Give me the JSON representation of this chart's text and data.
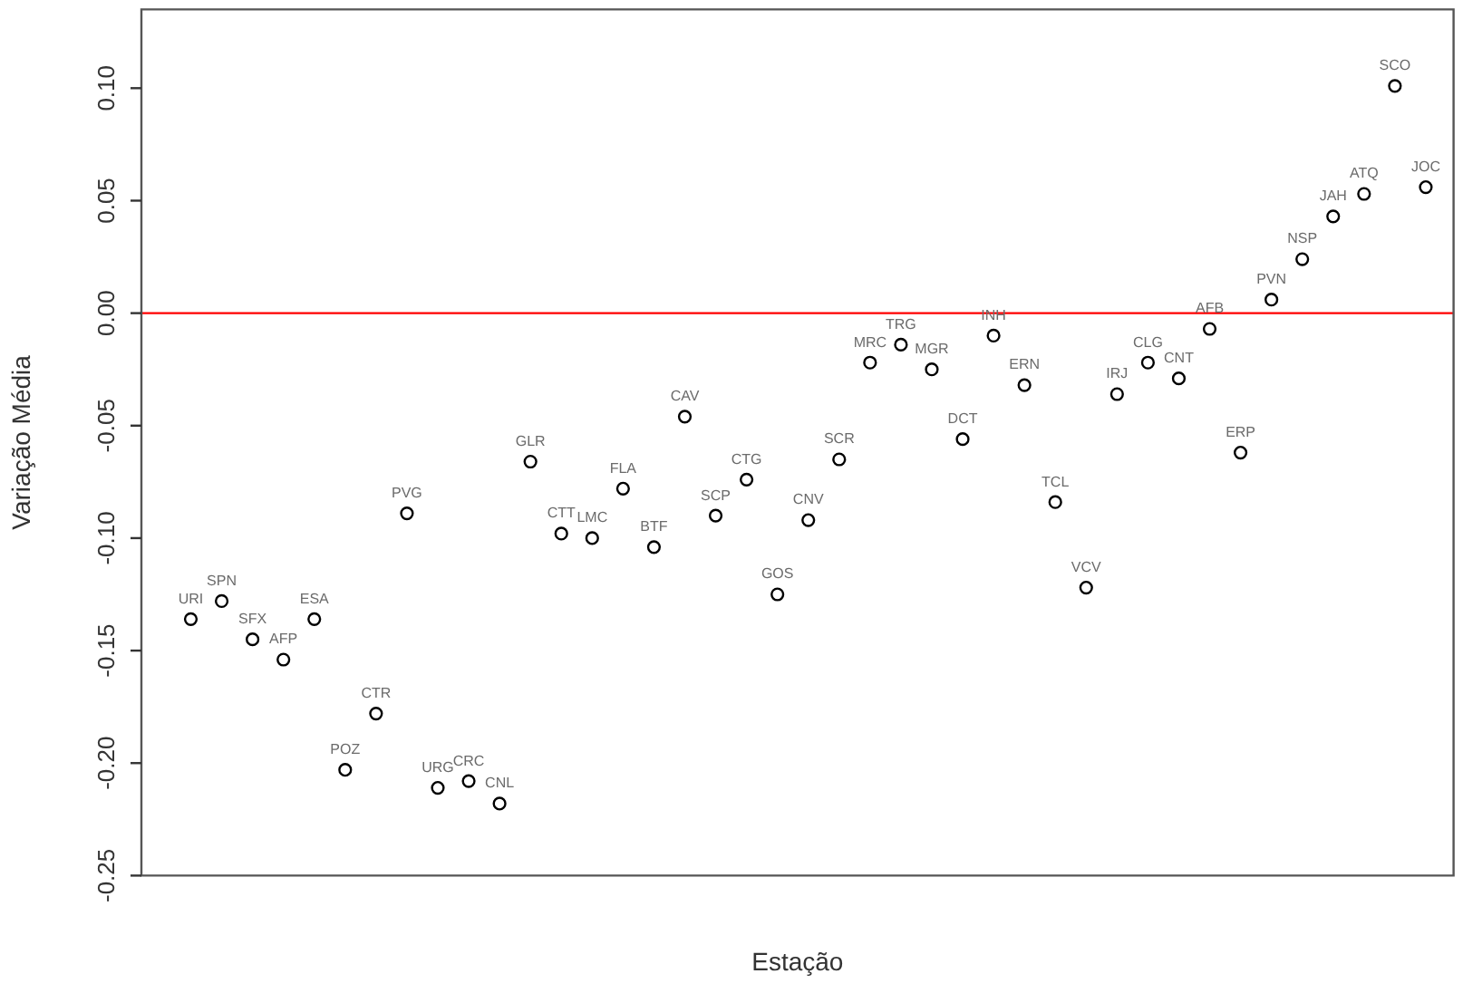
{
  "chart_data": {
    "type": "scatter",
    "xlabel": "Estação",
    "ylabel": "Variação Média",
    "categories": [
      "URI",
      "SPN",
      "SFX",
      "AFP",
      "ESA",
      "POZ",
      "CTR",
      "PVG",
      "URG",
      "CRC",
      "CNL",
      "GLR",
      "CTT",
      "LMC",
      "FLA",
      "BTF",
      "CAV",
      "SCP",
      "CTG",
      "GOS",
      "CNV",
      "SCR",
      "MRC",
      "TRG",
      "MGR",
      "DCT",
      "INH",
      "ERN",
      "TCL",
      "VCV",
      "IRJ",
      "CLG",
      "CNT",
      "AFB",
      "ERP",
      "PVN",
      "NSP",
      "JAH",
      "ATQ",
      "SCO",
      "JOC"
    ],
    "series": [
      {
        "color": "#000000",
        "values": [
          -0.136,
          -0.128,
          -0.145,
          -0.154,
          -0.136,
          -0.203,
          -0.178,
          -0.089,
          -0.211,
          -0.208,
          -0.218,
          -0.066,
          -0.098,
          -0.1,
          -0.078,
          -0.104,
          -0.046,
          -0.09,
          -0.074,
          -0.125,
          -0.092,
          -0.065,
          -0.022,
          -0.014,
          -0.025,
          -0.056,
          -0.01,
          -0.032,
          -0.084,
          -0.122,
          -0.036,
          -0.022,
          -0.029,
          -0.007,
          -0.062,
          0.006,
          0.024,
          0.043,
          0.053,
          0.101,
          0.056
        ]
      }
    ],
    "ylim": [
      -0.25,
      0.135
    ],
    "yticks": [
      {
        "value": -0.25,
        "label": "-0.25"
      },
      {
        "value": -0.2,
        "label": "-0.20"
      },
      {
        "value": -0.15,
        "label": "-0.15"
      },
      {
        "value": -0.1,
        "label": "-0.10"
      },
      {
        "value": -0.05,
        "label": "-0.05"
      },
      {
        "value": 0,
        "label": "0.00"
      },
      {
        "value": 0.05,
        "label": "0.05"
      },
      {
        "value": 0.1,
        "label": "0.10"
      }
    ],
    "ref_lines": [
      {
        "axis": "y",
        "value": 0,
        "color": "#ff0000"
      }
    ],
    "marker": "circle",
    "grid": false,
    "legend": false,
    "tick_labels": "y"
  }
}
